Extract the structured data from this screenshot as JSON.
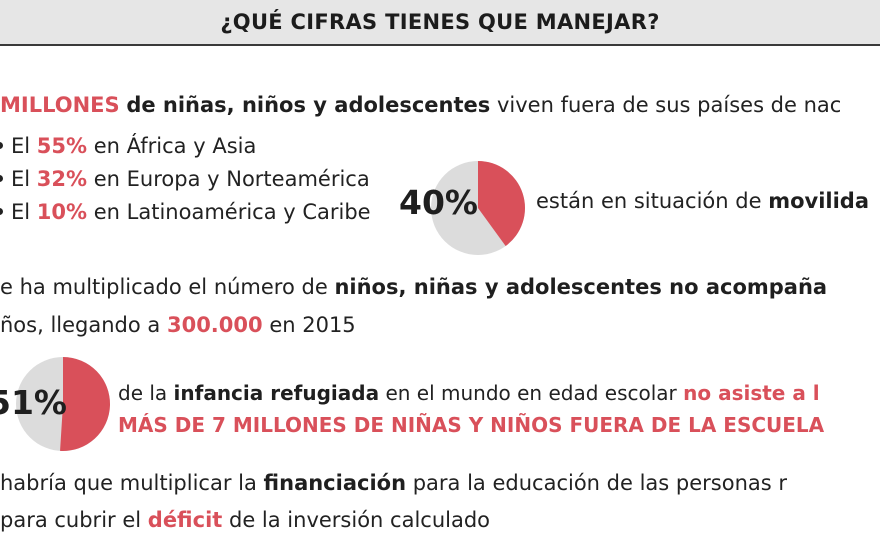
{
  "header": {
    "title": "¿QUÉ CIFRAS TIENES QUE MANEJAR?"
  },
  "stat1": {
    "highlight": "MILLONES",
    "bold": "de niñas, niños y adolescentes",
    "rest": "viven fuera de sus países de nac"
  },
  "regions": [
    {
      "prefix": "El",
      "value": "55%",
      "suffix": "en África y Asia"
    },
    {
      "prefix": "El",
      "value": "32%",
      "suffix": "en Europa y Norteamérica"
    },
    {
      "prefix": "El",
      "value": "10%",
      "suffix": "en Latinoamérica y Caribe"
    }
  ],
  "pie_mobility": {
    "percent_label": "40%",
    "fraction": 0.4,
    "text": "están en situación de",
    "bold": "movilida",
    "color_fill": "#d9505a",
    "color_rest": "#dcdcdc"
  },
  "unaccompanied": {
    "line1_text": "e ha multiplicado el número de",
    "line1_bold": "niños, niñas y adolescentes no acompaña",
    "line2_text": "ños, llegando a",
    "line2_highlight": "300.000",
    "line2_rest": "en 2015"
  },
  "pie_school": {
    "percent_label": "51%",
    "fraction": 0.51,
    "pre": "de la",
    "bold": "infancia refugiada",
    "mid": "en el mundo en edad escolar",
    "highlight": "no asiste a l",
    "line2": "MÁS DE 7 MILLONES DE NIÑAS Y NIÑOS FUERA DE LA ESCUELA",
    "color_fill": "#d9505a",
    "color_rest": "#dcdcdc"
  },
  "financing": {
    "line1_text": "habría que multiplicar la",
    "line1_bold": "financiación",
    "line1_rest": "para la educación de las personas r",
    "line2_text": "para cubrir el",
    "line2_highlight": "déficit",
    "line2_rest": "de la inversión calculado"
  }
}
